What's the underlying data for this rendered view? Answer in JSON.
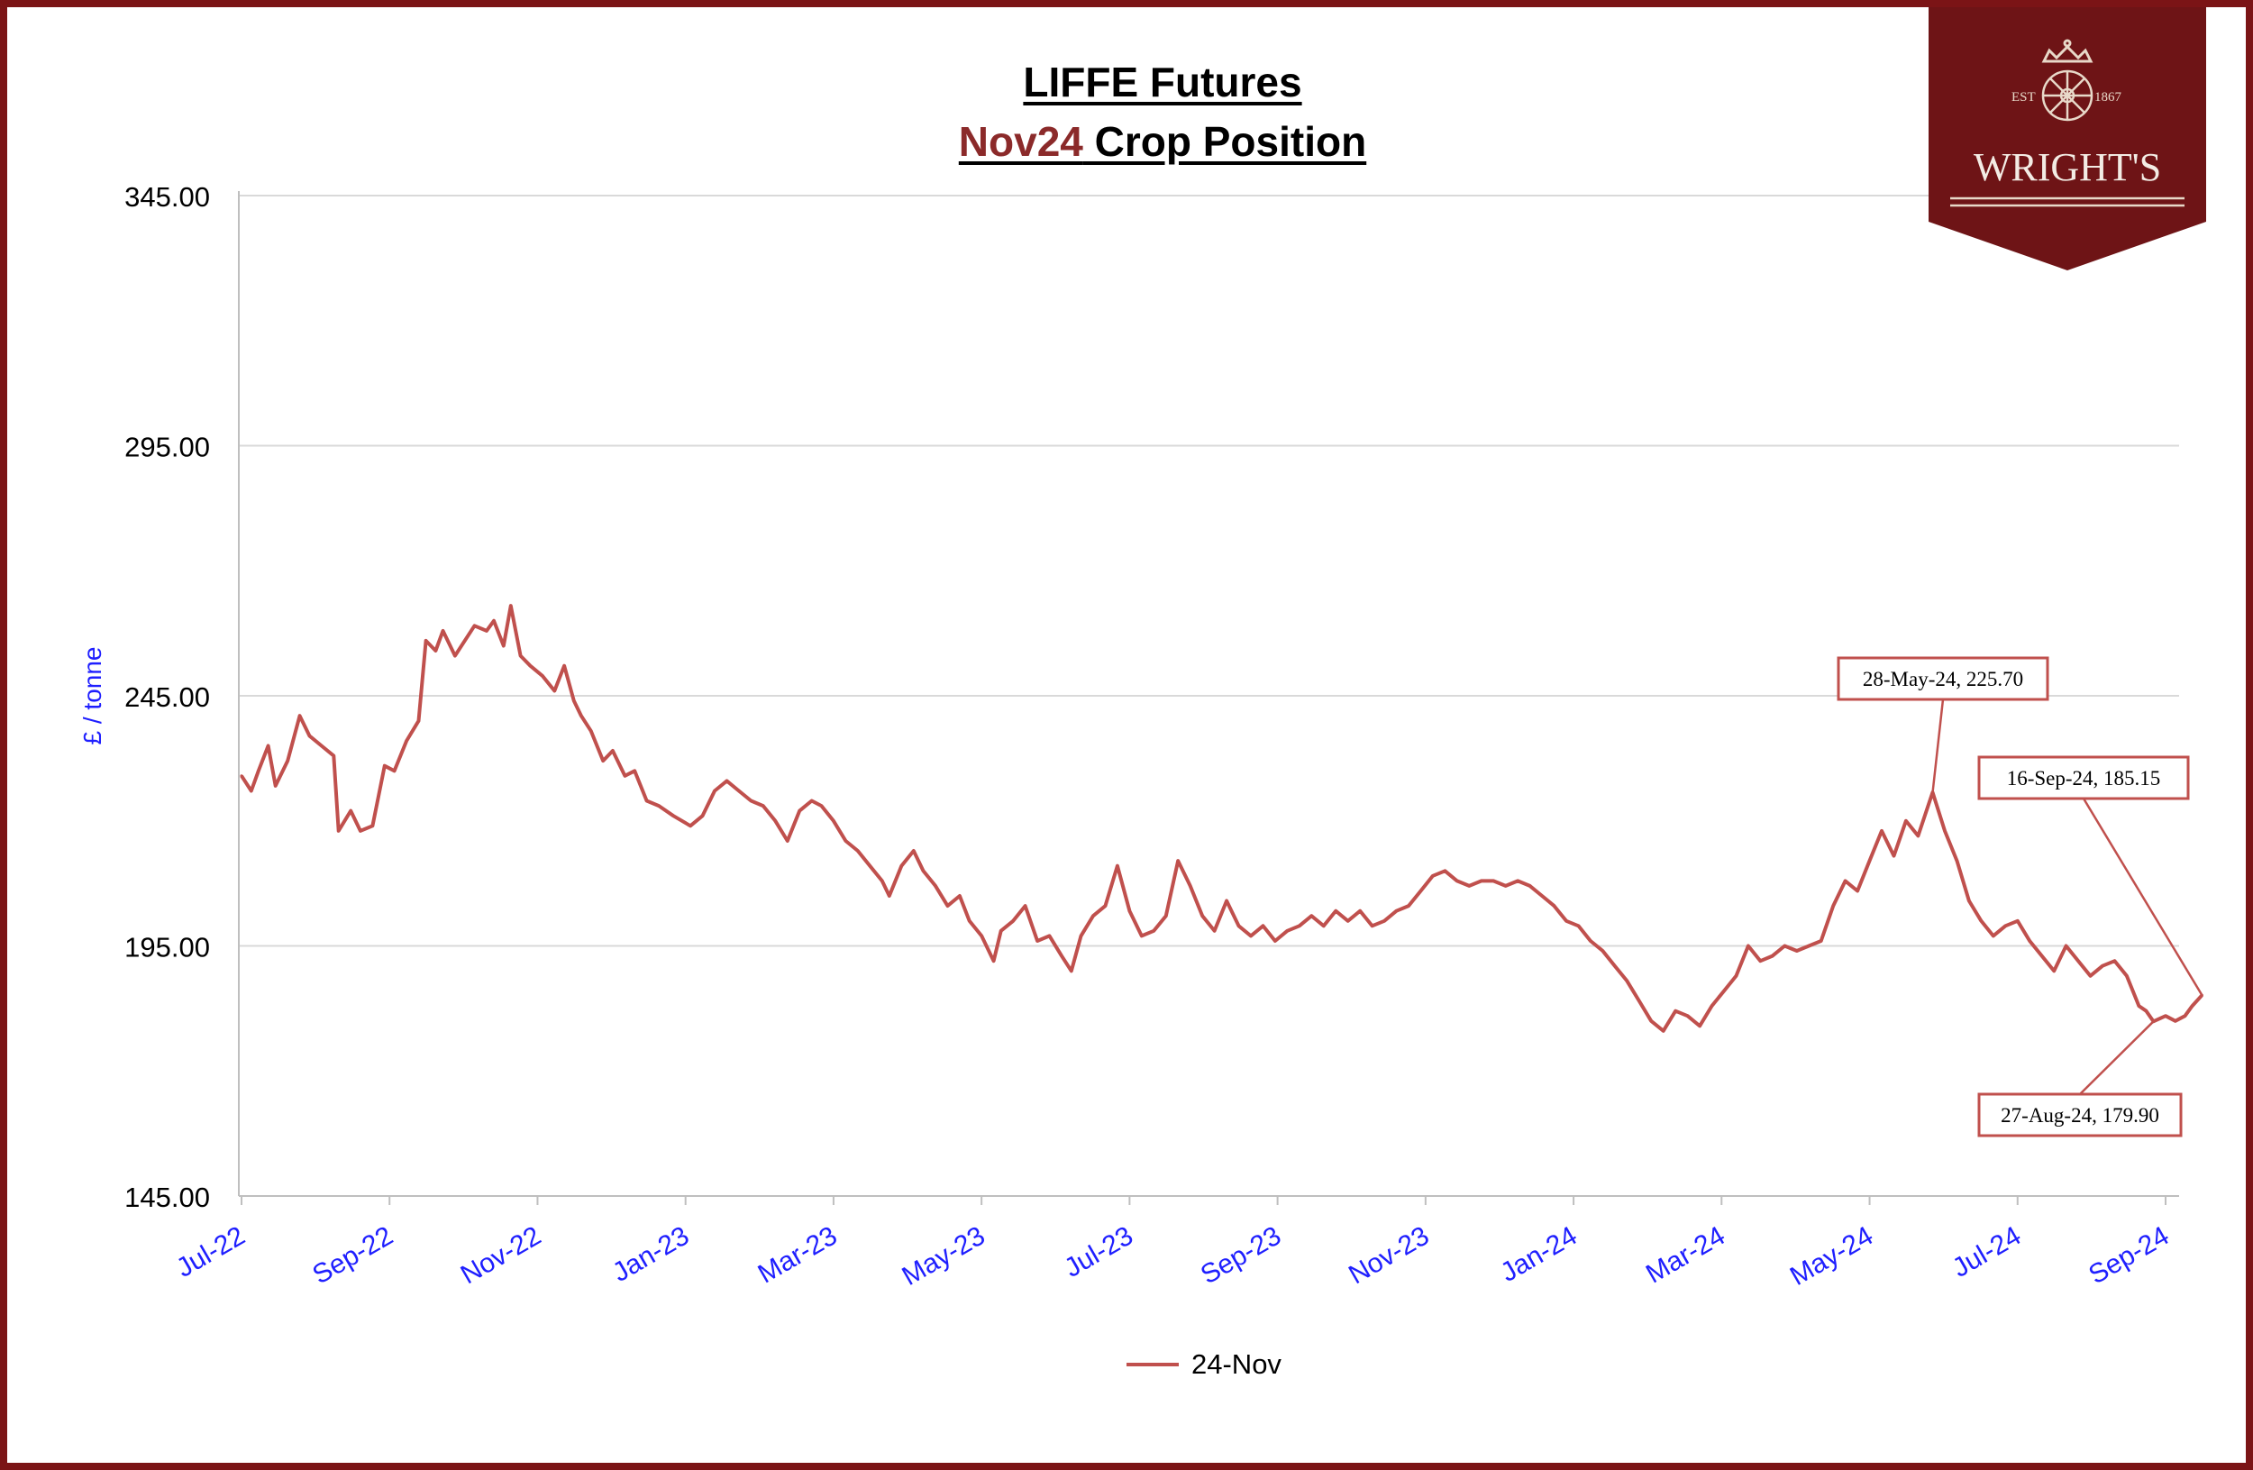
{
  "chart_data": {
    "type": "line",
    "title": "LIFFE Futures",
    "subtitle_highlight": "Nov24",
    "subtitle_rest": " Crop Position",
    "ylabel": "£ / tonne",
    "xlabel": "",
    "ylim": [
      145,
      345
    ],
    "y_ticks": [
      "345.00",
      "295.00",
      "245.00",
      "195.00",
      "145.00"
    ],
    "x_ticks": [
      "Jul-22",
      "Sep-22",
      "Nov-22",
      "Jan-23",
      "Mar-23",
      "May-23",
      "Jul-23",
      "Sep-23",
      "Nov-23",
      "Jan-24",
      "Mar-24",
      "May-24",
      "Jul-24",
      "Sep-24"
    ],
    "grid": "horizontal",
    "legend_position": "bottom",
    "series": [
      {
        "name": "24-Nov",
        "color": "#c0504d",
        "points": [
          [
            "2022-07-01",
            229
          ],
          [
            "2022-07-05",
            226
          ],
          [
            "2022-07-08",
            230
          ],
          [
            "2022-07-12",
            235
          ],
          [
            "2022-07-15",
            227
          ],
          [
            "2022-07-20",
            232
          ],
          [
            "2022-07-25",
            241
          ],
          [
            "2022-07-29",
            237
          ],
          [
            "2022-08-03",
            235
          ],
          [
            "2022-08-08",
            233
          ],
          [
            "2022-08-10",
            218
          ],
          [
            "2022-08-15",
            222
          ],
          [
            "2022-08-19",
            218
          ],
          [
            "2022-08-24",
            219
          ],
          [
            "2022-08-29",
            231
          ],
          [
            "2022-09-02",
            230
          ],
          [
            "2022-09-07",
            236
          ],
          [
            "2022-09-12",
            240
          ],
          [
            "2022-09-15",
            256
          ],
          [
            "2022-09-19",
            254
          ],
          [
            "2022-09-22",
            258
          ],
          [
            "2022-09-27",
            253
          ],
          [
            "2022-10-01",
            256
          ],
          [
            "2022-10-05",
            259
          ],
          [
            "2022-10-10",
            258
          ],
          [
            "2022-10-13",
            260
          ],
          [
            "2022-10-17",
            255
          ],
          [
            "2022-10-20",
            263
          ],
          [
            "2022-10-24",
            253
          ],
          [
            "2022-10-28",
            251
          ],
          [
            "2022-11-02",
            249
          ],
          [
            "2022-11-07",
            246
          ],
          [
            "2022-11-11",
            251
          ],
          [
            "2022-11-15",
            244
          ],
          [
            "2022-11-18",
            241
          ],
          [
            "2022-11-22",
            238
          ],
          [
            "2022-11-27",
            232
          ],
          [
            "2022-12-01",
            234
          ],
          [
            "2022-12-06",
            229
          ],
          [
            "2022-12-10",
            230
          ],
          [
            "2022-12-15",
            224
          ],
          [
            "2022-12-20",
            223
          ],
          [
            "2022-12-26",
            221
          ],
          [
            "2023-01-02",
            219
          ],
          [
            "2023-01-07",
            221
          ],
          [
            "2023-01-12",
            226
          ],
          [
            "2023-01-17",
            228
          ],
          [
            "2023-01-22",
            226
          ],
          [
            "2023-01-27",
            224
          ],
          [
            "2023-02-01",
            223
          ],
          [
            "2023-02-06",
            220
          ],
          [
            "2023-02-11",
            216
          ],
          [
            "2023-02-16",
            222
          ],
          [
            "2023-02-21",
            224
          ],
          [
            "2023-02-25",
            223
          ],
          [
            "2023-03-02",
            220
          ],
          [
            "2023-03-07",
            216
          ],
          [
            "2023-03-12",
            214
          ],
          [
            "2023-03-17",
            211
          ],
          [
            "2023-03-22",
            208
          ],
          [
            "2023-03-25",
            205
          ],
          [
            "2023-03-30",
            211
          ],
          [
            "2023-04-04",
            214
          ],
          [
            "2023-04-08",
            210
          ],
          [
            "2023-04-13",
            207
          ],
          [
            "2023-04-18",
            203
          ],
          [
            "2023-04-23",
            205
          ],
          [
            "2023-04-27",
            200
          ],
          [
            "2023-05-02",
            197
          ],
          [
            "2023-05-07",
            192
          ],
          [
            "2023-05-10",
            198
          ],
          [
            "2023-05-15",
            200
          ],
          [
            "2023-05-20",
            203
          ],
          [
            "2023-05-25",
            196
          ],
          [
            "2023-05-30",
            197
          ],
          [
            "2023-06-04",
            193
          ],
          [
            "2023-06-08",
            190
          ],
          [
            "2023-06-12",
            197
          ],
          [
            "2023-06-17",
            201
          ],
          [
            "2023-06-22",
            203
          ],
          [
            "2023-06-27",
            211
          ],
          [
            "2023-07-02",
            202
          ],
          [
            "2023-07-07",
            197
          ],
          [
            "2023-07-12",
            198
          ],
          [
            "2023-07-17",
            201
          ],
          [
            "2023-07-22",
            212
          ],
          [
            "2023-07-27",
            207
          ],
          [
            "2023-08-01",
            201
          ],
          [
            "2023-08-06",
            198
          ],
          [
            "2023-08-11",
            204
          ],
          [
            "2023-08-16",
            199
          ],
          [
            "2023-08-21",
            197
          ],
          [
            "2023-08-26",
            199
          ],
          [
            "2023-08-31",
            196
          ],
          [
            "2023-09-05",
            198
          ],
          [
            "2023-09-10",
            199
          ],
          [
            "2023-09-15",
            201
          ],
          [
            "2023-09-20",
            199
          ],
          [
            "2023-09-25",
            202
          ],
          [
            "2023-09-30",
            200
          ],
          [
            "2023-10-05",
            202
          ],
          [
            "2023-10-10",
            199
          ],
          [
            "2023-10-15",
            200
          ],
          [
            "2023-10-20",
            202
          ],
          [
            "2023-10-25",
            203
          ],
          [
            "2023-10-30",
            206
          ],
          [
            "2023-11-04",
            209
          ],
          [
            "2023-11-09",
            210
          ],
          [
            "2023-11-14",
            208
          ],
          [
            "2023-11-19",
            207
          ],
          [
            "2023-11-24",
            208
          ],
          [
            "2023-11-29",
            208
          ],
          [
            "2023-12-04",
            207
          ],
          [
            "2023-12-09",
            208
          ],
          [
            "2023-12-14",
            207
          ],
          [
            "2023-12-19",
            205
          ],
          [
            "2023-12-24",
            203
          ],
          [
            "2023-12-29",
            200
          ],
          [
            "2024-01-03",
            199
          ],
          [
            "2024-01-08",
            196
          ],
          [
            "2024-01-13",
            194
          ],
          [
            "2024-01-18",
            191
          ],
          [
            "2024-01-23",
            188
          ],
          [
            "2024-01-28",
            184
          ],
          [
            "2024-02-02",
            180
          ],
          [
            "2024-02-07",
            178
          ],
          [
            "2024-02-12",
            182
          ],
          [
            "2024-02-17",
            181
          ],
          [
            "2024-02-22",
            179
          ],
          [
            "2024-02-27",
            183
          ],
          [
            "2024-03-03",
            186
          ],
          [
            "2024-03-08",
            189
          ],
          [
            "2024-03-13",
            195
          ],
          [
            "2024-03-18",
            192
          ],
          [
            "2024-03-23",
            193
          ],
          [
            "2024-03-28",
            195
          ],
          [
            "2024-04-02",
            194
          ],
          [
            "2024-04-07",
            195
          ],
          [
            "2024-04-12",
            196
          ],
          [
            "2024-04-17",
            203
          ],
          [
            "2024-04-22",
            208
          ],
          [
            "2024-04-27",
            206
          ],
          [
            "2024-05-02",
            212
          ],
          [
            "2024-05-07",
            218
          ],
          [
            "2024-05-12",
            213
          ],
          [
            "2024-05-17",
            220
          ],
          [
            "2024-05-22",
            217
          ],
          [
            "2024-05-28",
            225.7
          ],
          [
            "2024-06-02",
            218
          ],
          [
            "2024-06-07",
            212
          ],
          [
            "2024-06-12",
            204
          ],
          [
            "2024-06-17",
            200
          ],
          [
            "2024-06-22",
            197
          ],
          [
            "2024-06-27",
            199
          ],
          [
            "2024-07-02",
            200
          ],
          [
            "2024-07-07",
            196
          ],
          [
            "2024-07-12",
            193
          ],
          [
            "2024-07-17",
            190
          ],
          [
            "2024-07-22",
            195
          ],
          [
            "2024-07-27",
            192
          ],
          [
            "2024-08-01",
            189
          ],
          [
            "2024-08-06",
            191
          ],
          [
            "2024-08-11",
            192
          ],
          [
            "2024-08-16",
            189
          ],
          [
            "2024-08-21",
            183
          ],
          [
            "2024-08-24",
            182
          ],
          [
            "2024-08-27",
            179.9
          ],
          [
            "2024-09-01",
            181
          ],
          [
            "2024-09-05",
            180
          ],
          [
            "2024-09-09",
            181
          ],
          [
            "2024-09-12",
            183
          ],
          [
            "2024-09-16",
            185.15
          ]
        ]
      }
    ],
    "annotations": [
      {
        "label": "28-May-24, 225.70",
        "date": "2024-05-28",
        "value": 225.7
      },
      {
        "label": "16-Sep-24, 185.15",
        "date": "2024-09-16",
        "value": 185.15
      },
      {
        "label": "27-Aug-24, 179.90",
        "date": "2024-08-27",
        "value": 179.9
      }
    ]
  },
  "logo": {
    "text": "WRIGHT'S",
    "est": "EST",
    "year": "1867",
    "bg_color": "#6e1416"
  },
  "colors": {
    "frame": "#7b1416",
    "subtitle_highlight": "#8b2a2a",
    "axis_label": "#1f1fff",
    "grid": "#d9d9d9"
  }
}
